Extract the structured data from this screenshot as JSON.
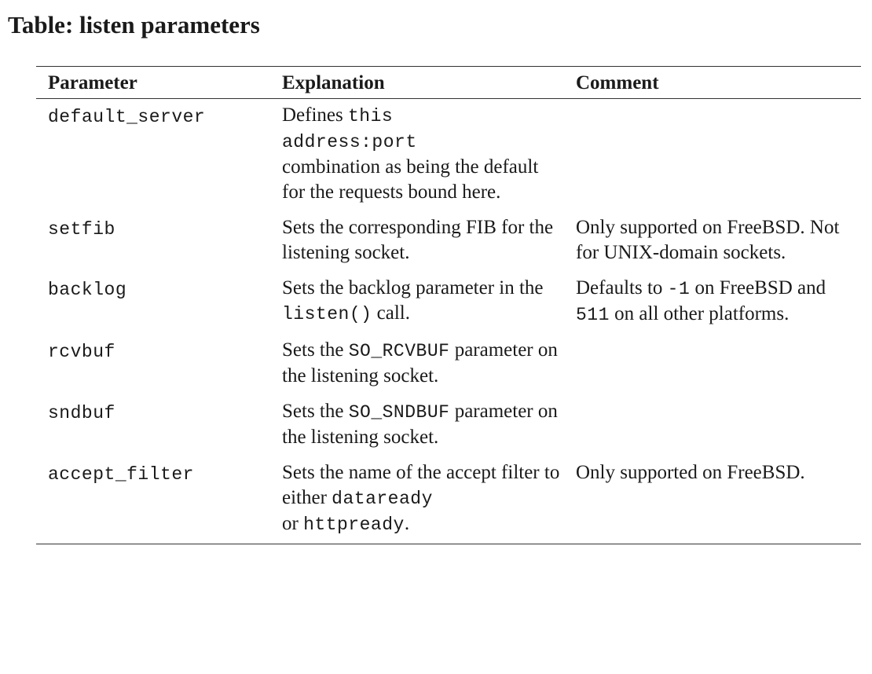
{
  "title": "Table: listen parameters",
  "headers": {
    "parameter": "Parameter",
    "explanation": "Explanation",
    "comment": "Comment"
  },
  "rows": [
    {
      "param": "default_server",
      "explanation": {
        "t1": "Defines ",
        "c1": "this",
        "c2": "address:port",
        "t2": "combination as being the default for the requests bound here."
      },
      "comment": ""
    },
    {
      "param": "setfib",
      "explanation": {
        "t1": "Sets the corresponding FIB for the listening socket."
      },
      "comment": "Only supported on FreeBSD. Not for UNIX-domain sockets."
    },
    {
      "param": "backlog",
      "explanation": {
        "t1": "Sets the backlog parameter in the ",
        "c1": "listen()",
        "t2": " call."
      },
      "comment": {
        "t1": "Defaults to ",
        "c1": "-1",
        "t2": " on FreeBSD and ",
        "c2": "511",
        "t3": " on all other platforms."
      }
    },
    {
      "param": "rcvbuf",
      "explanation": {
        "t1": "Sets the ",
        "c1": "SO_RCVBUF",
        "t2": " parameter on the listening socket."
      },
      "comment": ""
    },
    {
      "param": "sndbuf",
      "explanation": {
        "t1": "Sets the ",
        "c1": "SO_SNDBUF",
        "t2": " parameter on the listening socket."
      },
      "comment": ""
    },
    {
      "param": "accept_filter",
      "explanation": {
        "t1": "Sets the name of the accept filter to either ",
        "c1": "dataready",
        "t2": " or ",
        "c2": "httpready",
        "t3": "."
      },
      "comment": "Only supported on FreeBSD."
    }
  ]
}
